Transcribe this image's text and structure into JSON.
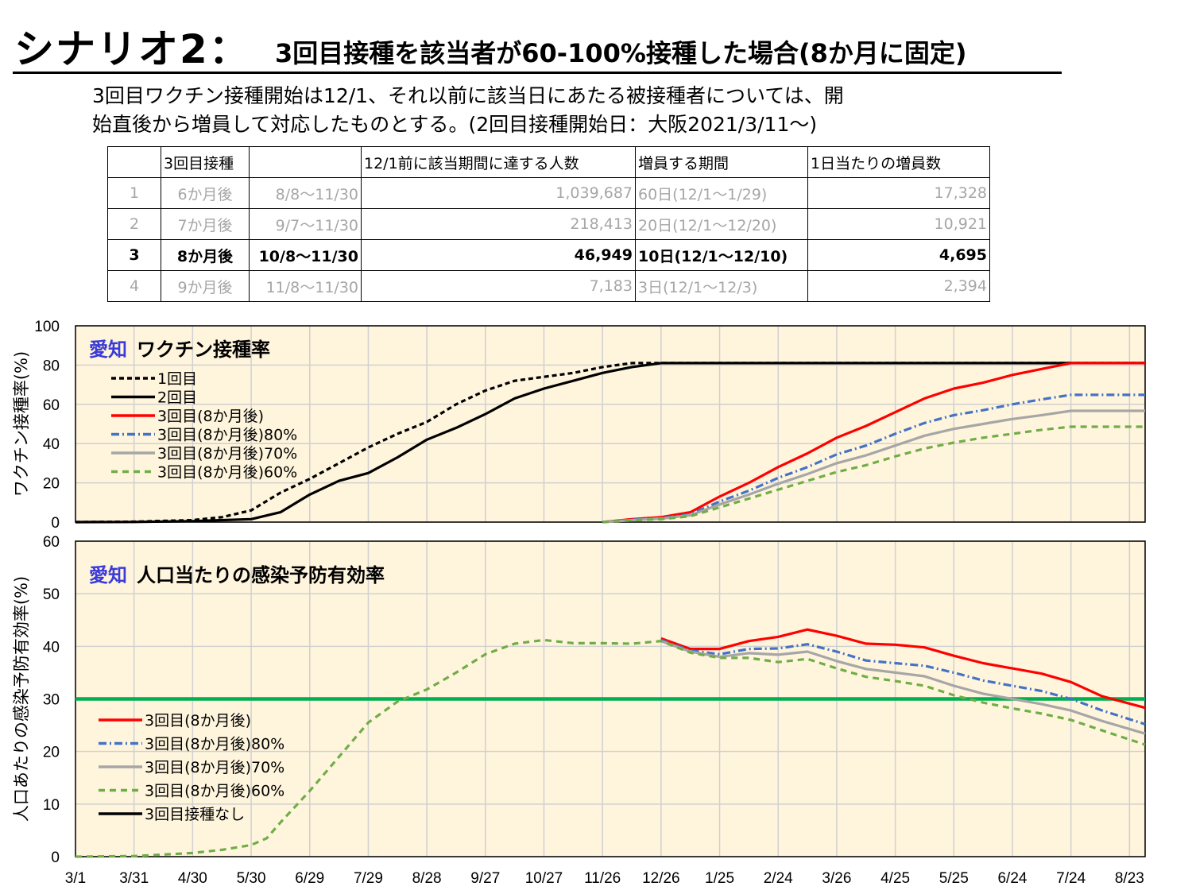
{
  "title": {
    "main": "シナリオ2：",
    "sub": "3回目接種を該当者が60-100%接種した場合(8か月に固定)"
  },
  "description": {
    "line1": "3回目ワクチン接種開始は12/1、それ以前に該当日にあたる被接種者については、開",
    "line2": "始直後から増員して対応したものとする。(2回目接種開始日：大阪2021/3/11～)"
  },
  "table": {
    "headers": [
      "",
      "3回目接種",
      "",
      "12/1前に該当期間に達する人数",
      "増員する期間",
      "1日当たりの増員数"
    ],
    "rows": [
      {
        "cells": [
          "1",
          "6か月後",
          "8/8～11/30",
          "1,039,687",
          "60日(12/1～1/29)",
          "17,328"
        ],
        "highlight": false
      },
      {
        "cells": [
          "2",
          "7か月後",
          "9/7～11/30",
          "218,413",
          "20日(12/1～12/20)",
          "10,921"
        ],
        "highlight": false
      },
      {
        "cells": [
          "3",
          "8か月後",
          "10/8～11/30",
          "46,949",
          "10日(12/1～12/10)",
          "4,695"
        ],
        "highlight": true
      },
      {
        "cells": [
          "4",
          "9か月後",
          "11/8～11/30",
          "7,183",
          "3日(12/1～12/3)",
          "2,394"
        ],
        "highlight": false
      }
    ]
  },
  "chart_data": [
    {
      "type": "line",
      "region": "愛知",
      "title": "ワクチン接種率",
      "ylabel": "ワクチン接種率(%)",
      "ylim": [
        0,
        100
      ],
      "yticks": [
        0,
        20,
        40,
        60,
        80,
        100
      ],
      "x_range": [
        "3/1",
        "8/31"
      ],
      "grid": true,
      "legend": "top-left",
      "series": [
        {
          "name": "1回目",
          "color": "#000000",
          "dash": "6,4",
          "points": [
            [
              "3/1",
              0
            ],
            [
              "3/31",
              0.2
            ],
            [
              "4/30",
              1
            ],
            [
              "5/15",
              2.5
            ],
            [
              "5/30",
              6
            ],
            [
              "6/14",
              15
            ],
            [
              "6/29",
              22
            ],
            [
              "7/14",
              30
            ],
            [
              "7/29",
              38
            ],
            [
              "8/13",
              45
            ],
            [
              "8/28",
              51
            ],
            [
              "9/12",
              60
            ],
            [
              "9/27",
              67
            ],
            [
              "10/12",
              72
            ],
            [
              "10/27",
              74
            ],
            [
              "11/11",
              76
            ],
            [
              "11/26",
              79
            ],
            [
              "12/11",
              81
            ],
            [
              "12/26",
              81
            ],
            [
              "8/31",
              81
            ]
          ]
        },
        {
          "name": "2回目",
          "color": "#000000",
          "dash": "",
          "points": [
            [
              "3/1",
              0
            ],
            [
              "3/31",
              0.1
            ],
            [
              "4/30",
              0.5
            ],
            [
              "5/30",
              1.5
            ],
            [
              "6/14",
              5
            ],
            [
              "6/29",
              14
            ],
            [
              "7/14",
              21
            ],
            [
              "7/29",
              25
            ],
            [
              "8/13",
              33
            ],
            [
              "8/28",
              42
            ],
            [
              "9/12",
              48
            ],
            [
              "9/27",
              55
            ],
            [
              "10/12",
              63
            ],
            [
              "10/27",
              68
            ],
            [
              "11/11",
              72
            ],
            [
              "11/26",
              76
            ],
            [
              "12/11",
              79
            ],
            [
              "12/26",
              81
            ],
            [
              "8/31",
              81
            ]
          ]
        },
        {
          "name": "3回目(8か月後)",
          "color": "#ff0000",
          "dash": "",
          "points": [
            [
              "11/26",
              0
            ],
            [
              "12/11",
              1.5
            ],
            [
              "12/26",
              2.5
            ],
            [
              "1/10",
              5
            ],
            [
              "1/25",
              13
            ],
            [
              "2/9",
              20
            ],
            [
              "2/24",
              28
            ],
            [
              "3/11",
              35
            ],
            [
              "3/26",
              43
            ],
            [
              "4/10",
              49
            ],
            [
              "4/25",
              56
            ],
            [
              "5/10",
              63
            ],
            [
              "5/25",
              68
            ],
            [
              "6/9",
              71
            ],
            [
              "6/24",
              75
            ],
            [
              "7/9",
              78
            ],
            [
              "7/24",
              81
            ],
            [
              "8/31",
              81
            ]
          ]
        },
        {
          "name": "3回目(8か月後)80%",
          "color": "#4472c4",
          "dash": "10,4,2,4",
          "points": [
            [
              "11/26",
              0
            ],
            [
              "12/11",
              1.2
            ],
            [
              "12/26",
              2
            ],
            [
              "1/10",
              4
            ],
            [
              "1/25",
              10.5
            ],
            [
              "2/9",
              16
            ],
            [
              "2/24",
              22.5
            ],
            [
              "3/11",
              28
            ],
            [
              "3/26",
              34.5
            ],
            [
              "4/10",
              39
            ],
            [
              "4/25",
              45
            ],
            [
              "5/10",
              50.5
            ],
            [
              "5/25",
              54.5
            ],
            [
              "6/9",
              57
            ],
            [
              "6/24",
              60
            ],
            [
              "7/9",
              62.5
            ],
            [
              "7/24",
              64.8
            ],
            [
              "8/31",
              64.8
            ]
          ]
        },
        {
          "name": "3回目(8か月後)70%",
          "color": "#a6a6a6",
          "dash": "",
          "points": [
            [
              "11/26",
              0
            ],
            [
              "12/11",
              1
            ],
            [
              "12/26",
              1.8
            ],
            [
              "1/10",
              3.5
            ],
            [
              "1/25",
              9
            ],
            [
              "2/9",
              14
            ],
            [
              "2/24",
              19.5
            ],
            [
              "3/11",
              24.5
            ],
            [
              "3/26",
              30
            ],
            [
              "4/10",
              34
            ],
            [
              "4/25",
              39
            ],
            [
              "5/10",
              44
            ],
            [
              "5/25",
              47.5
            ],
            [
              "6/9",
              50
            ],
            [
              "6/24",
              52.5
            ],
            [
              "7/9",
              54.5
            ],
            [
              "7/24",
              56.7
            ],
            [
              "8/31",
              56.7
            ]
          ]
        },
        {
          "name": "3回目(8か月後)60%",
          "color": "#70ad47",
          "dash": "8,6",
          "points": [
            [
              "11/26",
              0
            ],
            [
              "12/11",
              0.9
            ],
            [
              "12/26",
              1.5
            ],
            [
              "1/10",
              3
            ],
            [
              "1/25",
              7.5
            ],
            [
              "2/9",
              12
            ],
            [
              "2/24",
              16.5
            ],
            [
              "3/11",
              21
            ],
            [
              "3/26",
              25.5
            ],
            [
              "4/10",
              29
            ],
            [
              "4/25",
              33.5
            ],
            [
              "5/10",
              37.5
            ],
            [
              "5/25",
              40.5
            ],
            [
              "6/9",
              43
            ],
            [
              "6/24",
              45
            ],
            [
              "7/9",
              47
            ],
            [
              "7/24",
              48.6
            ],
            [
              "8/31",
              48.6
            ]
          ]
        }
      ]
    },
    {
      "type": "line",
      "region": "愛知",
      "title": "人口当たりの感染予防有効率",
      "ylabel": "人口あたりの感染予防有効率(%)",
      "ylim": [
        0,
        60
      ],
      "yticks": [
        0,
        10,
        20,
        30,
        40,
        50,
        60
      ],
      "x_range": [
        "3/1",
        "8/31"
      ],
      "xticks": [
        "3/1",
        "3/31",
        "4/30",
        "5/30",
        "6/29",
        "7/29",
        "8/28",
        "9/27",
        "10/27",
        "11/26",
        "12/26",
        "1/25",
        "2/24",
        "3/26",
        "4/25",
        "5/25",
        "6/24",
        "7/24",
        "8/23"
      ],
      "reference_line": {
        "y": 30,
        "color": "#00b050"
      },
      "grid": true,
      "legend": "bottom-left",
      "series": [
        {
          "name": "3回目(8か月後)",
          "color": "#ff0000",
          "dash": "",
          "points": [
            [
              "12/26",
              41.5
            ],
            [
              "1/10",
              39.5
            ],
            [
              "1/25",
              39.5
            ],
            [
              "2/9",
              41
            ],
            [
              "2/24",
              41.8
            ],
            [
              "3/11",
              43.2
            ],
            [
              "3/26",
              42
            ],
            [
              "4/10",
              40.5
            ],
            [
              "4/25",
              40.3
            ],
            [
              "5/10",
              39.8
            ],
            [
              "5/25",
              38.2
            ],
            [
              "6/9",
              36.8
            ],
            [
              "6/24",
              35.8
            ],
            [
              "7/9",
              34.8
            ],
            [
              "7/24",
              33.2
            ],
            [
              "8/9",
              30.5
            ],
            [
              "8/31",
              28.3
            ]
          ]
        },
        {
          "name": "3回目(8か月後)80%",
          "color": "#4472c4",
          "dash": "10,4,2,4",
          "points": [
            [
              "12/26",
              41.2
            ],
            [
              "1/10",
              39.2
            ],
            [
              "1/25",
              38.5
            ],
            [
              "2/9",
              39.5
            ],
            [
              "2/24",
              39.6
            ],
            [
              "3/11",
              40.4
            ],
            [
              "3/26",
              39
            ],
            [
              "4/10",
              37.3
            ],
            [
              "4/25",
              36.8
            ],
            [
              "5/10",
              36.3
            ],
            [
              "5/25",
              35
            ],
            [
              "6/9",
              33.5
            ],
            [
              "6/24",
              32.5
            ],
            [
              "7/9",
              31.5
            ],
            [
              "7/24",
              30
            ],
            [
              "8/9",
              27.8
            ],
            [
              "8/31",
              25.2
            ]
          ]
        },
        {
          "name": "3回目(8か月後)70%",
          "color": "#a6a6a6",
          "dash": "",
          "points": [
            [
              "12/26",
              41
            ],
            [
              "1/10",
              39
            ],
            [
              "1/25",
              38
            ],
            [
              "2/9",
              38.7
            ],
            [
              "2/24",
              38.4
            ],
            [
              "3/11",
              39
            ],
            [
              "3/26",
              37.2
            ],
            [
              "4/10",
              35.7
            ],
            [
              "4/25",
              35
            ],
            [
              "5/10",
              34.3
            ],
            [
              "5/25",
              32.5
            ],
            [
              "6/9",
              31
            ],
            [
              "6/24",
              30
            ],
            [
              "7/9",
              29
            ],
            [
              "7/24",
              27.8
            ],
            [
              "8/9",
              25.8
            ],
            [
              "8/31",
              23.4
            ]
          ]
        },
        {
          "name": "3回目(8か月後)60%",
          "color": "#70ad47",
          "dash": "8,6",
          "points": [
            [
              "3/1",
              0
            ],
            [
              "3/31",
              0.1
            ],
            [
              "4/30",
              0.7
            ],
            [
              "5/15",
              1.3
            ],
            [
              "5/30",
              2.2
            ],
            [
              "6/7",
              3.5
            ],
            [
              "6/14",
              6.5
            ],
            [
              "6/29",
              12.5
            ],
            [
              "7/14",
              19
            ],
            [
              "7/29",
              25.5
            ],
            [
              "8/13",
              29.5
            ],
            [
              "8/28",
              31.8
            ],
            [
              "9/12",
              35
            ],
            [
              "9/27",
              38.5
            ],
            [
              "10/12",
              40.5
            ],
            [
              "10/27",
              41.2
            ],
            [
              "11/11",
              40.6
            ],
            [
              "11/26",
              40.6
            ],
            [
              "12/11",
              40.5
            ],
            [
              "12/26",
              41
            ],
            [
              "1/10",
              38.8
            ],
            [
              "1/25",
              37.8
            ],
            [
              "2/9",
              37.8
            ],
            [
              "2/24",
              37
            ],
            [
              "3/11",
              37.6
            ],
            [
              "3/26",
              35.8
            ],
            [
              "4/10",
              34.2
            ],
            [
              "4/25",
              33.4
            ],
            [
              "5/10",
              32.5
            ],
            [
              "5/25",
              30.7
            ],
            [
              "6/9",
              29.3
            ],
            [
              "6/24",
              28.2
            ],
            [
              "7/9",
              27.2
            ],
            [
              "7/24",
              26
            ],
            [
              "8/9",
              24
            ],
            [
              "8/31",
              21.3
            ]
          ]
        },
        {
          "name": "3回目接種なし",
          "color": "#000000",
          "dash": "",
          "points": []
        }
      ]
    }
  ]
}
